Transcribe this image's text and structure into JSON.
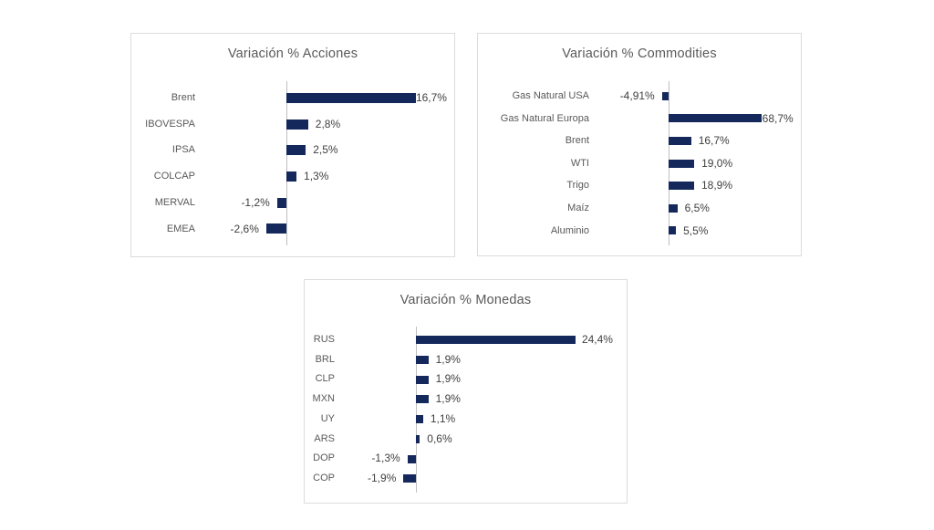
{
  "colors": {
    "bar": "#14285C",
    "title_text": "#595959",
    "category_text": "#595959",
    "value_text": "#3F3F3F",
    "axis_line": "#BFBFBF",
    "panel_border": "#DCDCDC",
    "background": "#FFFFFF"
  },
  "chart_data": [
    {
      "type": "bar",
      "orientation": "horizontal",
      "title": "Variación % Acciones",
      "categories": [
        "Brent",
        "IBOVESPA",
        "IPSA",
        "COLCAP",
        "MERVAL",
        "EMEA"
      ],
      "values": [
        16.7,
        2.8,
        2.5,
        1.3,
        -1.2,
        -2.6
      ],
      "value_labels": [
        "16,7%",
        "2,8%",
        "2,5%",
        "1,3%",
        "-1,2%",
        "-2,6%"
      ],
      "xlabel": "",
      "ylabel": "",
      "grid": false,
      "legend": false,
      "data_labels": true,
      "baseline_axis": 0
    },
    {
      "type": "bar",
      "orientation": "horizontal",
      "title": "Variación % Commodities",
      "categories": [
        "Gas Natural USA",
        "Gas Natural Europa",
        "Brent",
        "WTI",
        "Trigo",
        "Maíz",
        "Aluminio"
      ],
      "values": [
        -4.91,
        68.7,
        16.7,
        19.0,
        18.9,
        6.5,
        5.5
      ],
      "value_labels": [
        "-4,91%",
        "68,7%",
        "16,7%",
        "19,0%",
        "18,9%",
        "6,5%",
        "5,5%"
      ],
      "xlabel": "",
      "ylabel": "",
      "grid": false,
      "legend": false,
      "data_labels": true,
      "baseline_axis": 0
    },
    {
      "type": "bar",
      "orientation": "horizontal",
      "title": "Variación % Monedas",
      "categories": [
        "RUS",
        "BRL",
        "CLP",
        "MXN",
        "UY",
        "ARS",
        "DOP",
        "COP"
      ],
      "values": [
        24.4,
        1.9,
        1.9,
        1.9,
        1.1,
        0.6,
        -1.3,
        -1.9
      ],
      "value_labels": [
        "24,4%",
        "1,9%",
        "1,9%",
        "1,9%",
        "1,1%",
        "0,6%",
        "-1,3%",
        "-1,9%"
      ],
      "xlabel": "",
      "ylabel": "",
      "grid": false,
      "legend": false,
      "data_labels": true,
      "baseline_axis": 0
    }
  ]
}
